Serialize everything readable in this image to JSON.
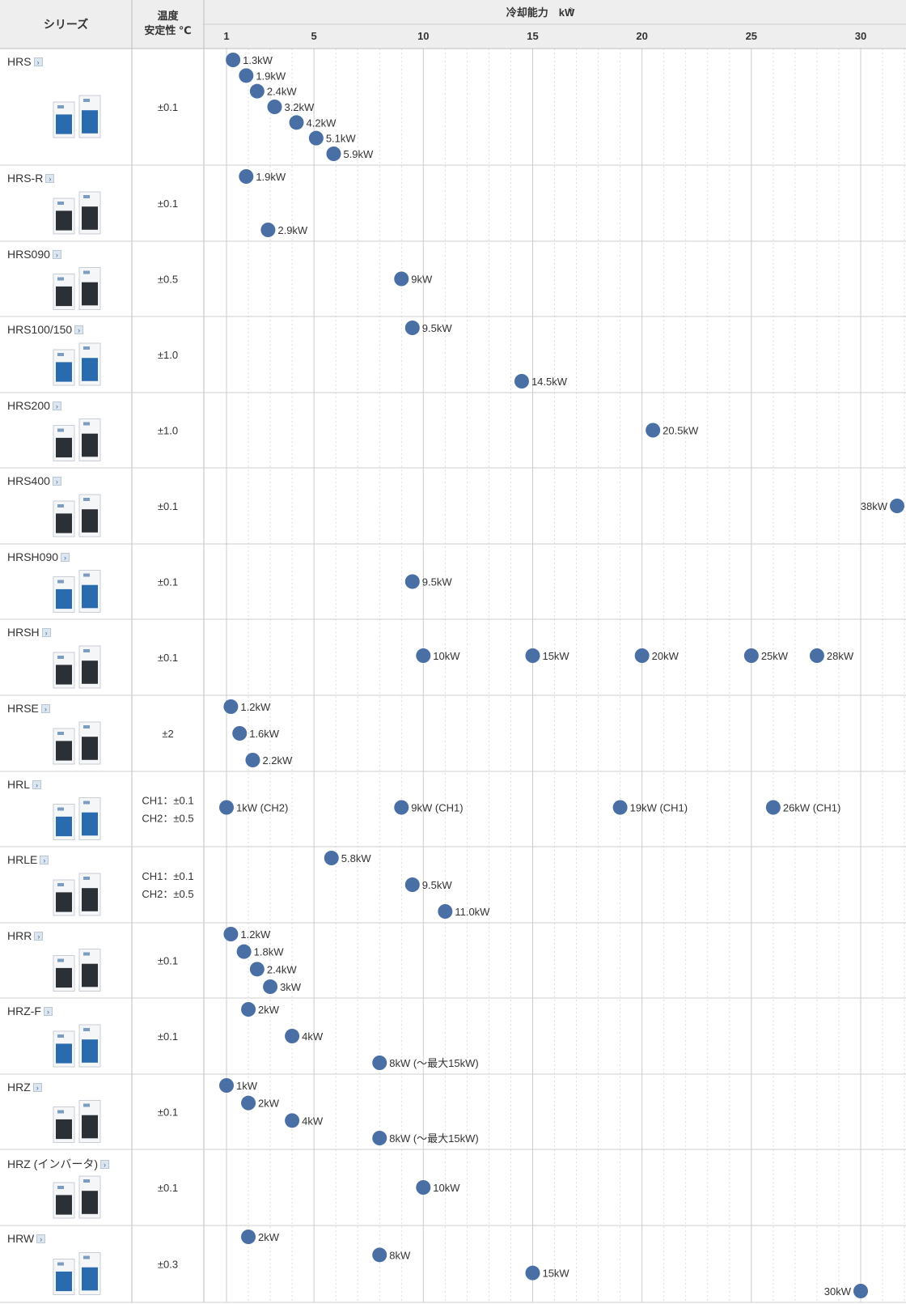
{
  "header": {
    "series_label": "シリーズ",
    "stability_label_line1": "温度",
    "stability_label_line2": "安定性 ℃",
    "capacity_label": "冷却能力　kW",
    "capacity_note_mark": "※"
  },
  "icons": {
    "detail_link": "chevron-right-icon",
    "product": "chiller-unit-icon"
  },
  "colors": {
    "dot": "#4a6fa5",
    "header_bg": "#eeeeee",
    "grid_major": "#cccccc",
    "grid_minor": "#d6d6d6"
  },
  "chart_data": {
    "type": "scatter",
    "title": "冷却能力　kW※",
    "xlabel": "冷却能力　kW",
    "ylabel": "シリーズ",
    "xlim": [
      0,
      32
    ],
    "x_ticks": [
      "1",
      "5",
      "10",
      "15",
      "20",
      "25",
      "30"
    ],
    "x_tick_values": [
      1,
      5,
      10,
      15,
      20,
      25,
      30
    ],
    "grid": "vertical dashed every 1 kW, solid at 5 kW steps",
    "rows": [
      {
        "series": "HRS",
        "stability": [
          "±0.1"
        ],
        "points": [
          {
            "x": 1.3,
            "label": "1.3kW"
          },
          {
            "x": 1.9,
            "label": "1.9kW"
          },
          {
            "x": 2.4,
            "label": "2.4kW"
          },
          {
            "x": 3.2,
            "label": "3.2kW"
          },
          {
            "x": 4.2,
            "label": "4.2kW"
          },
          {
            "x": 5.1,
            "label": "5.1kW"
          },
          {
            "x": 5.9,
            "label": "5.9kW"
          }
        ]
      },
      {
        "series": "HRS-R",
        "stability": [
          "±0.1"
        ],
        "points": [
          {
            "x": 1.9,
            "label": "1.9kW"
          },
          {
            "x": 2.9,
            "label": "2.9kW"
          }
        ]
      },
      {
        "series": "HRS090",
        "stability": [
          "±0.5"
        ],
        "points": [
          {
            "x": 9,
            "label": "9kW"
          }
        ]
      },
      {
        "series": "HRS100/150",
        "stability": [
          "±1.0"
        ],
        "points": [
          {
            "x": 9.5,
            "label": "9.5kW"
          },
          {
            "x": 14.5,
            "label": "14.5kW"
          }
        ]
      },
      {
        "series": "HRS200",
        "stability": [
          "±1.0"
        ],
        "points": [
          {
            "x": 20.5,
            "label": "20.5kW"
          }
        ]
      },
      {
        "series": "HRS400",
        "stability": [
          "±0.1"
        ],
        "points": [
          {
            "x": 38,
            "label": "38kW"
          }
        ]
      },
      {
        "series": "HRSH090",
        "stability": [
          "±0.1"
        ],
        "points": [
          {
            "x": 9.5,
            "label": "9.5kW"
          }
        ]
      },
      {
        "series": "HRSH",
        "stability": [
          "±0.1"
        ],
        "points": [
          {
            "x": 10,
            "label": "10kW"
          },
          {
            "x": 15,
            "label": "15kW"
          },
          {
            "x": 20,
            "label": "20kW"
          },
          {
            "x": 25,
            "label": "25kW"
          },
          {
            "x": 28,
            "label": "28kW"
          }
        ]
      },
      {
        "series": "HRSE",
        "stability": [
          "±2"
        ],
        "points": [
          {
            "x": 1.2,
            "label": "1.2kW"
          },
          {
            "x": 1.6,
            "label": "1.6kW"
          },
          {
            "x": 2.2,
            "label": "2.2kW"
          }
        ]
      },
      {
        "series": "HRL",
        "stability": [
          "CH1：±0.1",
          "CH2：±0.5"
        ],
        "points": [
          {
            "x": 1,
            "label": "1kW (CH2)"
          },
          {
            "x": 9,
            "label": "9kW (CH1)"
          },
          {
            "x": 19,
            "label": "19kW (CH1)"
          },
          {
            "x": 26,
            "label": "26kW (CH1)"
          }
        ]
      },
      {
        "series": "HRLE",
        "stability": [
          "CH1：±0.1",
          "CH2：±0.5"
        ],
        "points": [
          {
            "x": 5.8,
            "label": "5.8kW"
          },
          {
            "x": 9.5,
            "label": "9.5kW"
          },
          {
            "x": 11,
            "label": "11.0kW"
          }
        ]
      },
      {
        "series": "HRR",
        "stability": [
          "±0.1"
        ],
        "points": [
          {
            "x": 1.2,
            "label": "1.2kW"
          },
          {
            "x": 1.8,
            "label": "1.8kW"
          },
          {
            "x": 2.4,
            "label": "2.4kW"
          },
          {
            "x": 3,
            "label": "3kW"
          }
        ]
      },
      {
        "series": "HRZ-F",
        "stability": [
          "±0.1"
        ],
        "points": [
          {
            "x": 2,
            "label": "2kW"
          },
          {
            "x": 4,
            "label": "4kW"
          },
          {
            "x": 8,
            "label": "8kW (〜最大15kW)"
          }
        ]
      },
      {
        "series": "HRZ",
        "stability": [
          "±0.1"
        ],
        "points": [
          {
            "x": 1,
            "label": "1kW"
          },
          {
            "x": 2,
            "label": "2kW"
          },
          {
            "x": 4,
            "label": "4kW"
          },
          {
            "x": 8,
            "label": "8kW (〜最大15kW)"
          }
        ]
      },
      {
        "series": "HRZ (インバータ)",
        "stability": [
          "±0.1"
        ],
        "points": [
          {
            "x": 10,
            "label": "10kW"
          }
        ]
      },
      {
        "series": "HRW",
        "stability": [
          "±0.3"
        ],
        "points": [
          {
            "x": 2,
            "label": "2kW"
          },
          {
            "x": 8,
            "label": "8kW"
          },
          {
            "x": 15,
            "label": "15kW"
          },
          {
            "x": 30,
            "label": "30kW"
          }
        ]
      }
    ]
  }
}
